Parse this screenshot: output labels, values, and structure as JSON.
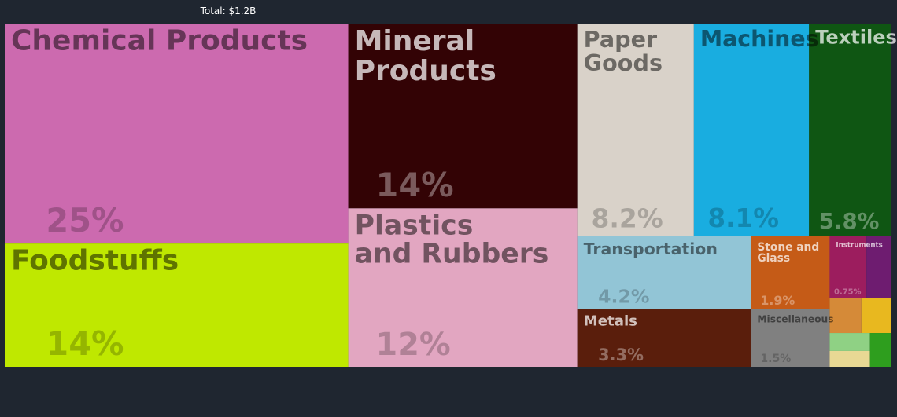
{
  "chart_data": {
    "type": "treemap",
    "title": "Total: $1.2B",
    "categories": [
      "Chemical Products",
      "Foodstuffs",
      "Mineral Products",
      "Plastics and Rubbers",
      "Paper Goods",
      "Machines",
      "Textiles",
      "Transportation",
      "Metals",
      "Stone and Glass",
      "Miscellaneous",
      "Instruments",
      null,
      null,
      null,
      null,
      null,
      null
    ],
    "values": [
      25,
      14,
      14,
      12,
      8.2,
      8.1,
      5.8,
      4.2,
      3.3,
      1.9,
      1.5,
      0.75,
      0.51,
      0.37,
      0.35,
      0.24,
      0.21,
      0.24
    ],
    "value_labels": [
      "25%",
      "14%",
      "14%",
      "12%",
      "8.2%",
      "8.1%",
      "5.8%",
      "4.2%",
      "3.3%",
      "1.9%",
      "1.5%",
      "0.75%",
      null,
      null,
      null,
      null,
      null,
      null
    ],
    "colors": [
      "#cc6aaf",
      "#bfe800",
      "#330305",
      "#e2a6c1",
      "#d9d2c9",
      "#19ade0",
      "#0f5613",
      "#92c5d6",
      "#5a1e0c",
      "#c55b17",
      "#808080",
      "#9c1d5e",
      "#6e1c70",
      "#d58a38",
      "#e8b81f",
      "#8fd184",
      "#e8d894",
      "#2e9e1e"
    ]
  }
}
